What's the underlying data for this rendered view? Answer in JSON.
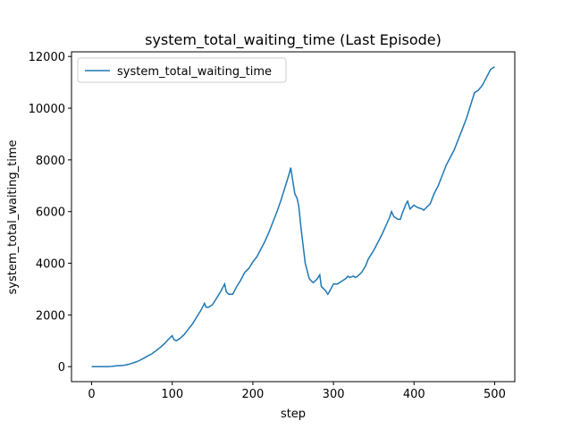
{
  "chart_data": {
    "type": "line",
    "title": "system_total_waiting_time (Last Episode)",
    "xlabel": "step",
    "ylabel": "system_total_waiting_time",
    "x": [
      0,
      5,
      10,
      15,
      20,
      25,
      30,
      35,
      40,
      45,
      50,
      55,
      60,
      65,
      70,
      75,
      80,
      85,
      90,
      95,
      100,
      102,
      105,
      110,
      115,
      120,
      125,
      130,
      135,
      140,
      142,
      145,
      150,
      155,
      160,
      165,
      167,
      170,
      175,
      180,
      185,
      190,
      195,
      200,
      205,
      210,
      215,
      220,
      225,
      230,
      235,
      240,
      245,
      247,
      250,
      252,
      255,
      257,
      260,
      265,
      270,
      273,
      275,
      280,
      283,
      285,
      290,
      293,
      295,
      300,
      305,
      310,
      315,
      318,
      320,
      325,
      327,
      330,
      335,
      340,
      343,
      345,
      350,
      355,
      360,
      365,
      370,
      372,
      375,
      380,
      383,
      385,
      390,
      392,
      395,
      400,
      402,
      405,
      410,
      412,
      415,
      420,
      425,
      430,
      435,
      440,
      445,
      450,
      455,
      460,
      465,
      470,
      475,
      480,
      485,
      490,
      495,
      500
    ],
    "series": [
      {
        "name": "system_total_waiting_time",
        "color": "#1f77b4",
        "values": [
          0,
          0,
          0,
          0,
          0,
          10,
          30,
          40,
          50,
          80,
          130,
          180,
          250,
          330,
          420,
          500,
          620,
          740,
          880,
          1050,
          1200,
          1050,
          1000,
          1100,
          1250,
          1450,
          1650,
          1900,
          2150,
          2450,
          2300,
          2300,
          2400,
          2650,
          2900,
          3200,
          2900,
          2800,
          2800,
          3100,
          3350,
          3650,
          3800,
          4050,
          4250,
          4550,
          4850,
          5200,
          5600,
          6000,
          6450,
          6950,
          7450,
          7700,
          7100,
          6700,
          6500,
          6200,
          5300,
          4000,
          3400,
          3300,
          3250,
          3400,
          3550,
          3100,
          2950,
          2800,
          2900,
          3200,
          3200,
          3300,
          3400,
          3500,
          3450,
          3500,
          3450,
          3500,
          3650,
          3900,
          4150,
          4250,
          4500,
          4800,
          5100,
          5450,
          5800,
          6000,
          5800,
          5700,
          5700,
          5900,
          6300,
          6400,
          6100,
          6250,
          6200,
          6150,
          6100,
          6050,
          6150,
          6300,
          6700,
          7000,
          7400,
          7800,
          8100,
          8400,
          8800,
          9200,
          9600,
          10100,
          10600,
          10700,
          10900,
          11200,
          11500,
          11600
        ]
      }
    ],
    "xlim": [
      -25,
      525
    ],
    "ylim": [
      -580,
      12180
    ],
    "xticks": [
      0,
      100,
      200,
      300,
      400,
      500
    ],
    "yticks": [
      0,
      2000,
      4000,
      6000,
      8000,
      10000,
      12000
    ],
    "legend": "upper left"
  }
}
